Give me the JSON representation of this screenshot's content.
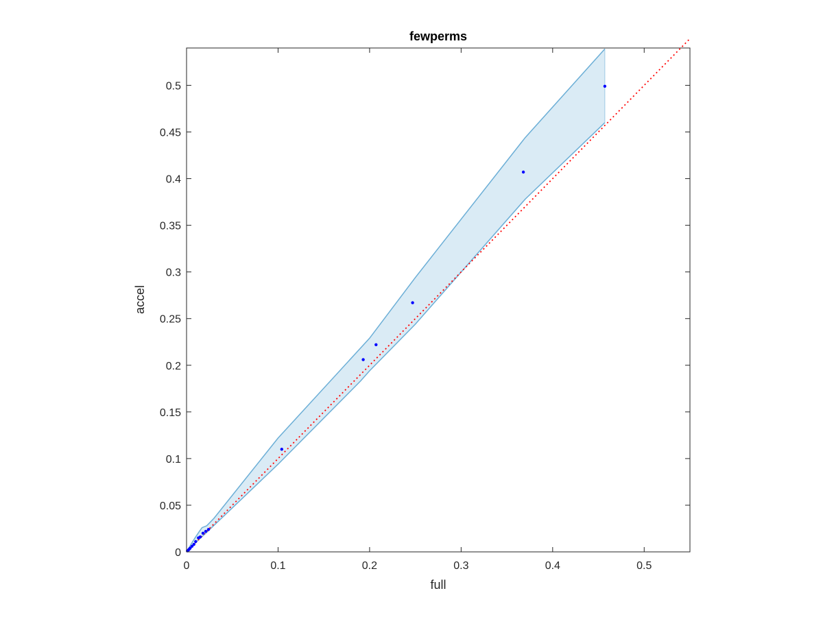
{
  "chart_data": {
    "type": "scatter",
    "title": "fewperms",
    "xlabel": "full",
    "ylabel": "accel",
    "xlim": [
      0,
      0.55
    ],
    "ylim": [
      0,
      0.54
    ],
    "xticks": [
      0,
      0.1,
      0.2,
      0.3,
      0.4,
      0.5
    ],
    "xtick_labels": [
      "0",
      "0.1",
      "0.2",
      "0.3",
      "0.4",
      "0.5"
    ],
    "yticks": [
      0,
      0.05,
      0.1,
      0.15,
      0.2,
      0.25,
      0.3,
      0.35,
      0.4,
      0.45,
      0.5
    ],
    "ytick_labels": [
      "0",
      "0.05",
      "0.1",
      "0.15",
      "0.2",
      "0.25",
      "0.3",
      "0.35",
      "0.4",
      "0.45",
      "0.5"
    ],
    "grid": false,
    "box": true,
    "reference_line": {
      "style": "dotted",
      "color": "#ff0000",
      "from": [
        0,
        0
      ],
      "to": [
        0.55,
        0.55
      ]
    },
    "band": {
      "color": "#6baed6",
      "fill_opacity": 0.25,
      "upper": [
        [
          0,
          0
        ],
        [
          0.003,
          0.005
        ],
        [
          0.006,
          0.01
        ],
        [
          0.01,
          0.016
        ],
        [
          0.014,
          0.022
        ],
        [
          0.017,
          0.026
        ],
        [
          0.022,
          0.028
        ],
        [
          0.03,
          0.036
        ],
        [
          0.1,
          0.122
        ],
        [
          0.2,
          0.229
        ],
        [
          0.25,
          0.294
        ],
        [
          0.37,
          0.444
        ],
        [
          0.457,
          0.539
        ]
      ],
      "lower": [
        [
          0,
          0
        ],
        [
          0.01,
          0.01
        ],
        [
          0.02,
          0.019
        ],
        [
          0.1,
          0.094
        ],
        [
          0.19,
          0.183
        ],
        [
          0.2,
          0.194
        ],
        [
          0.25,
          0.244
        ],
        [
          0.37,
          0.378
        ],
        [
          0.457,
          0.46
        ]
      ]
    },
    "series": [
      {
        "color": "#0000ff",
        "points": [
          [
            0.001,
            0.001
          ],
          [
            0.002,
            0.002
          ],
          [
            0.003,
            0.003
          ],
          [
            0.004,
            0.004
          ],
          [
            0.006,
            0.006
          ],
          [
            0.008,
            0.008
          ],
          [
            0.01,
            0.011
          ],
          [
            0.013,
            0.015
          ],
          [
            0.015,
            0.016
          ],
          [
            0.018,
            0.02
          ],
          [
            0.021,
            0.022
          ],
          [
            0.024,
            0.024
          ],
          [
            0.104,
            0.11
          ],
          [
            0.193,
            0.206
          ],
          [
            0.207,
            0.222
          ],
          [
            0.247,
            0.267
          ],
          [
            0.368,
            0.407
          ],
          [
            0.457,
            0.499
          ]
        ]
      }
    ]
  }
}
